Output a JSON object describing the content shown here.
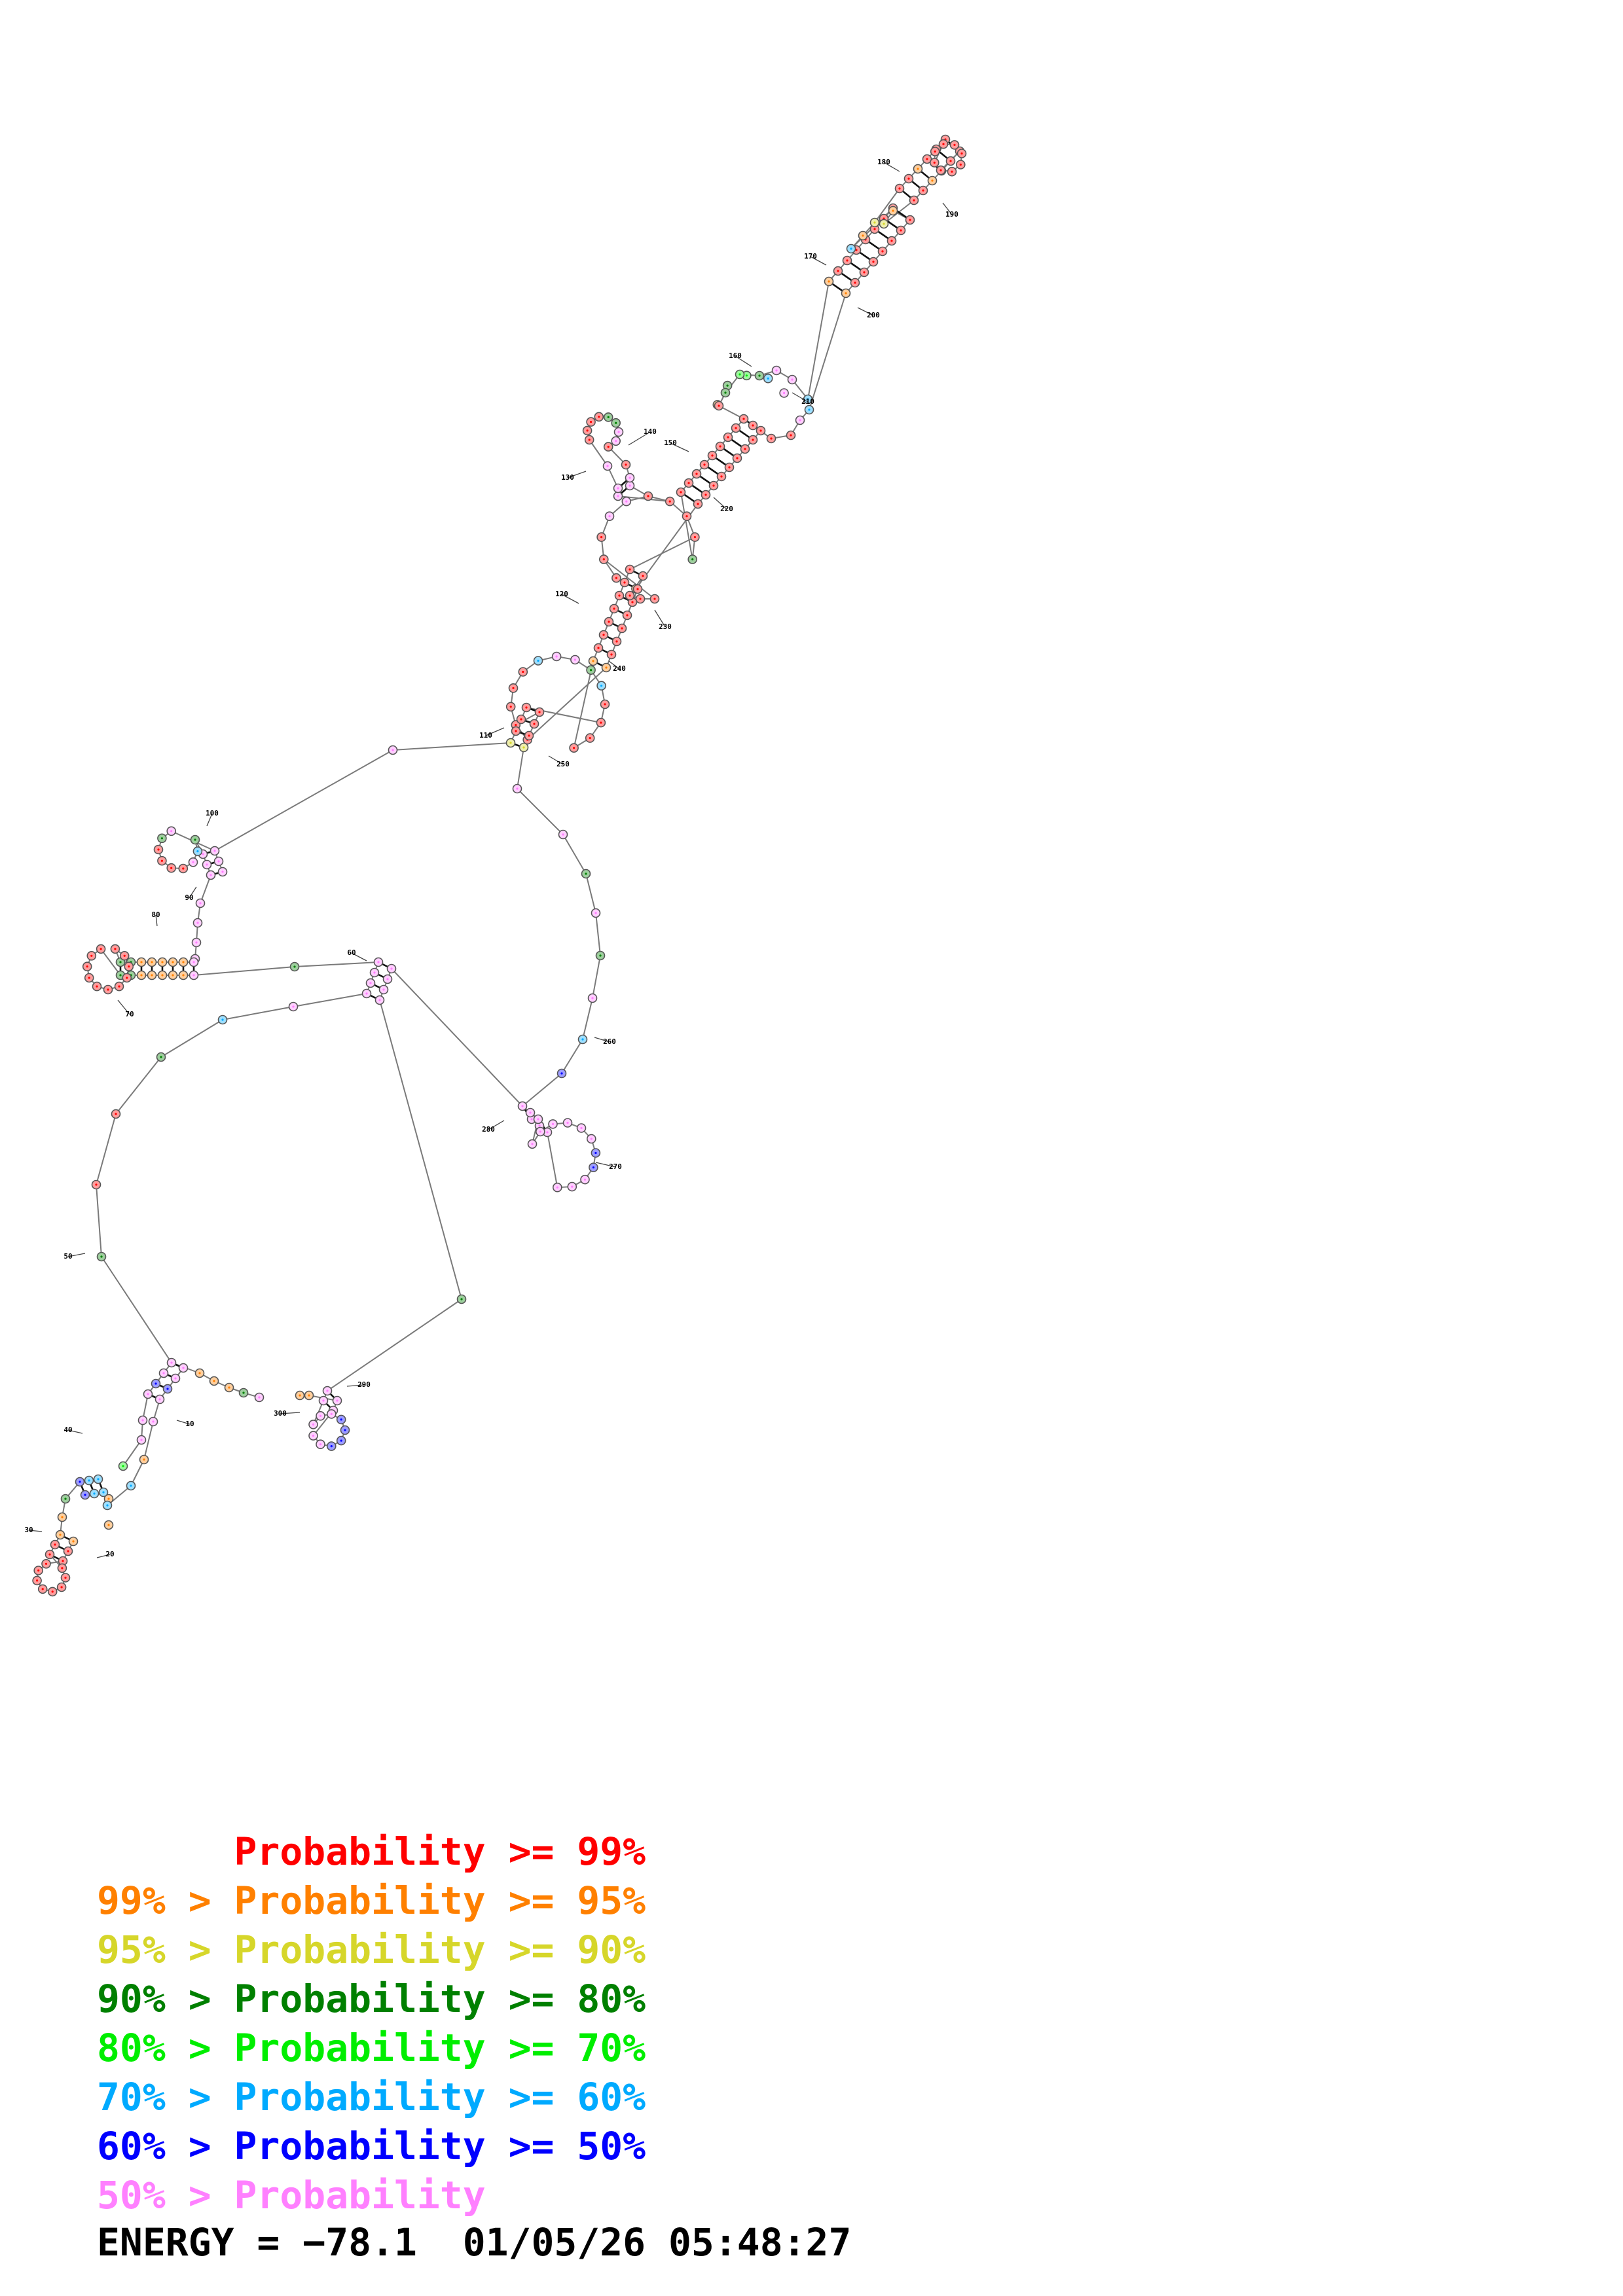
{
  "structure": {
    "position_labels": [
      "10",
      "20",
      "30",
      "40",
      "50",
      "60",
      "70",
      "80",
      "90",
      "100",
      "110",
      "120",
      "130",
      "140",
      "150",
      "160",
      "170",
      "180",
      "190",
      "200",
      "210",
      "220",
      "230",
      "240",
      "250",
      "260",
      "270",
      "280",
      "290",
      "300"
    ],
    "probability_colors": {
      "p99": "#ff0000",
      "p95": "#ff8000",
      "p90": "#d6d62a",
      "p80": "#008000",
      "p70": "#00ee00",
      "p60": "#00aaff",
      "p50": "#0000ff",
      "plow": "#ff80ff"
    }
  },
  "legend": [
    {
      "low": "",
      "sep": "",
      "name": "Probability",
      "op": ">=",
      "high": "99%",
      "color": "#ff0000"
    },
    {
      "low": "99%",
      "sep": ">",
      "name": "Probability",
      "op": ">=",
      "high": "95%",
      "color": "#ff8000"
    },
    {
      "low": "95%",
      "sep": ">",
      "name": "Probability",
      "op": ">=",
      "high": "90%",
      "color": "#d6d62a"
    },
    {
      "low": "90%",
      "sep": ">",
      "name": "Probability",
      "op": ">=",
      "high": "80%",
      "color": "#008000"
    },
    {
      "low": "80%",
      "sep": ">",
      "name": "Probability",
      "op": ">=",
      "high": "70%",
      "color": "#00ee00"
    },
    {
      "low": "70%",
      "sep": ">",
      "name": "Probability",
      "op": ">=",
      "high": "60%",
      "color": "#00aaff"
    },
    {
      "low": "60%",
      "sep": ">",
      "name": "Probability",
      "op": ">=",
      "high": "50%",
      "color": "#0000ff"
    },
    {
      "low": "50%",
      "sep": ">",
      "name": "Probability",
      "op": "",
      "high": "",
      "color": "#ff80ff"
    }
  ],
  "footer": {
    "energy_label": "ENERGY =",
    "energy_value": "−78.1",
    "date": "01/05/26",
    "time": "05:48:27"
  }
}
